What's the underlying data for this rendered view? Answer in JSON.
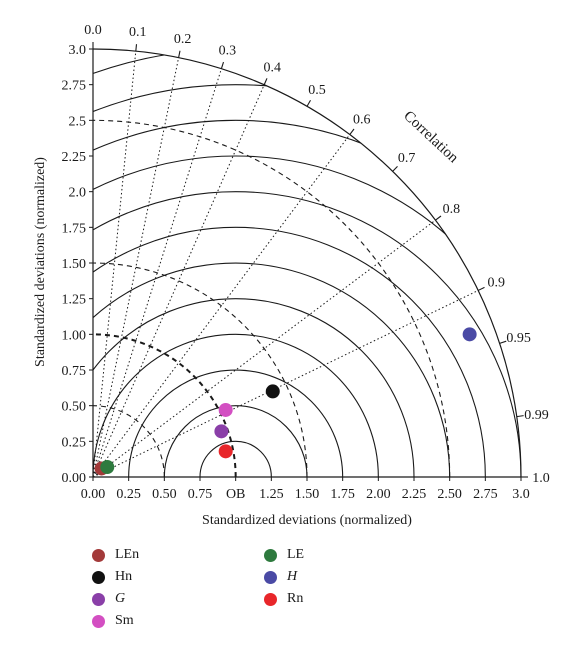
{
  "chart_data": {
    "type": "scatter",
    "title": "",
    "xlabel": "Standardized deviations (normalized)",
    "ylabel": "Standardized deviations (normalized)",
    "correlation_label": "Correlation",
    "reference_label": "OB",
    "xlim": [
      0,
      3.0
    ],
    "ylim": [
      0,
      3.0
    ],
    "x_ticks": [
      "0.00",
      "0.25",
      "0.50",
      "0.75",
      "OB",
      "1.25",
      "1.50",
      "1.75",
      "2.00",
      "2.25",
      "2.50",
      "2.75",
      "3.0"
    ],
    "y_ticks": [
      "0.00",
      "0.25",
      "0.50",
      "0.75",
      "1.00",
      "1.25",
      "1.50",
      "1.75",
      "2.0",
      "2.25",
      "2.5",
      "2.75",
      "3.0"
    ],
    "correlation_ticks": [
      "0.0",
      "0.1",
      "0.2",
      "0.3",
      "0.4",
      "0.5",
      "0.6",
      "0.7",
      "0.8",
      "0.9",
      "0.95",
      "0.99",
      "1.0"
    ],
    "series": [
      {
        "name": "LEn",
        "color": "#a33a3a",
        "italic": false,
        "x": 0.06,
        "y": 0.06
      },
      {
        "name": "LE",
        "color": "#2e7a3e",
        "italic": false,
        "x": 0.1,
        "y": 0.07
      },
      {
        "name": "Hn",
        "color": "#111111",
        "italic": false,
        "x": 1.26,
        "y": 0.6
      },
      {
        "name": "H",
        "color": "#4a4aa5",
        "italic": true,
        "x": 2.64,
        "y": 1.0
      },
      {
        "name": "G",
        "color": "#8a3fa8",
        "italic": true,
        "x": 0.9,
        "y": 0.32
      },
      {
        "name": "Rn",
        "color": "#e8262a",
        "italic": false,
        "x": 0.93,
        "y": 0.18
      },
      {
        "name": "Sm",
        "color": "#d34fc2",
        "italic": false,
        "x": 0.93,
        "y": 0.47
      }
    ]
  }
}
